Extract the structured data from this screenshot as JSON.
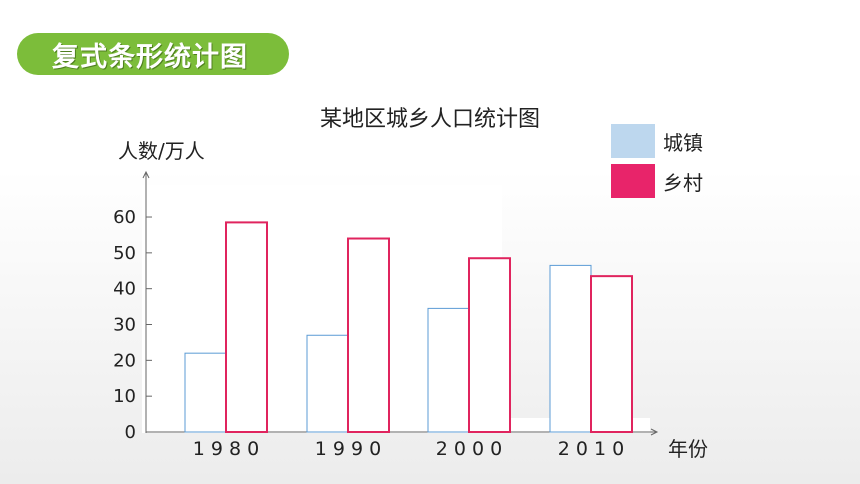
{
  "header": {
    "title": "复式条形统计图"
  },
  "chart_data": {
    "type": "bar",
    "title": "某地区城乡人口统计图",
    "ylabel": "人数/万人",
    "xlabel": "年份",
    "categories": [
      "1980",
      "1990",
      "2000",
      "2010"
    ],
    "category_labels": [
      "1 9 8 0",
      "1 9 9 0",
      "2 0 0 0",
      "2 0 1 0"
    ],
    "ylim": [
      0,
      70
    ],
    "yticks": [
      0,
      10,
      20,
      30,
      40,
      50,
      60
    ],
    "series": [
      {
        "name": "城镇",
        "values": [
          22,
          27,
          34.5,
          46.5
        ],
        "color": "#5b9bd5",
        "legend_color": "#bdd7ee"
      },
      {
        "name": "乡村",
        "values": [
          58.5,
          54,
          48.5,
          43.5
        ],
        "color": "#e0245e",
        "legend_color": "#e8246a"
      }
    ],
    "grid": false,
    "legend_position": "top-right"
  }
}
